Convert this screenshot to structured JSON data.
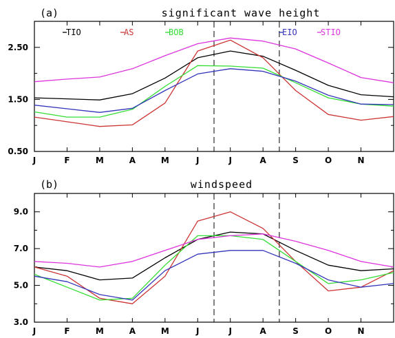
{
  "chart_data": [
    {
      "type": "line",
      "panel_label": "(a)",
      "title": "significant wave height",
      "categories": [
        "J",
        "F",
        "M",
        "A",
        "M",
        "J",
        "J",
        "A",
        "S",
        "O",
        "N",
        ""
      ],
      "ylim": [
        0.5,
        3.0
      ],
      "yticks": [
        "0.50",
        "1.50",
        "2.50"
      ],
      "ytick_values": [
        0.5,
        1.5,
        2.5
      ],
      "yminor_values": [
        1.0,
        2.0,
        3.0
      ],
      "vlines": [
        5.5,
        7.5
      ],
      "series": [
        {
          "name": "TIO",
          "color": "#000000",
          "values": [
            1.53,
            1.51,
            1.49,
            1.61,
            1.91,
            2.3,
            2.43,
            2.33,
            2.06,
            1.77,
            1.59,
            1.55
          ]
        },
        {
          "name": "AS",
          "color": "#cc3333",
          "values": [
            1.16,
            1.07,
            0.98,
            1.01,
            1.43,
            2.43,
            2.64,
            2.3,
            1.67,
            1.21,
            1.1,
            1.17
          ]
        },
        {
          "name": "BOB",
          "color": "#33dd33",
          "values": [
            1.26,
            1.16,
            1.16,
            1.31,
            1.75,
            2.15,
            2.14,
            2.1,
            1.82,
            1.53,
            1.41,
            1.37
          ]
        },
        {
          "name": "EIO",
          "color": "#3333bb",
          "values": [
            1.39,
            1.32,
            1.25,
            1.33,
            1.67,
            1.99,
            2.09,
            2.04,
            1.85,
            1.58,
            1.41,
            1.4
          ]
        },
        {
          "name": "STIO",
          "color": "#dd33dd",
          "values": [
            1.84,
            1.89,
            1.93,
            2.09,
            2.34,
            2.57,
            2.68,
            2.62,
            2.47,
            2.2,
            1.92,
            1.82
          ]
        }
      ]
    },
    {
      "type": "line",
      "panel_label": "(b)",
      "title": "windspeed",
      "categories": [
        "J",
        "F",
        "M",
        "A",
        "M",
        "J",
        "J",
        "A",
        "S",
        "O",
        "N",
        ""
      ],
      "ylim": [
        3.0,
        10.0
      ],
      "yticks": [
        "3.0",
        "5.0",
        "7.0",
        "9.0"
      ],
      "ytick_values": [
        3.0,
        5.0,
        7.0,
        9.0
      ],
      "yminor_values": [
        4.0,
        6.0,
        8.0
      ],
      "vlines": [
        5.5,
        7.5
      ],
      "series": [
        {
          "name": "TIO",
          "color": "#000000",
          "values": [
            6.0,
            5.8,
            5.3,
            5.4,
            6.5,
            7.5,
            7.9,
            7.8,
            6.9,
            6.1,
            5.8,
            5.9
          ]
        },
        {
          "name": "AS",
          "color": "#cc3333",
          "values": [
            6.0,
            5.5,
            4.3,
            4.0,
            5.5,
            8.5,
            9.0,
            8.1,
            6.3,
            4.7,
            4.9,
            5.8
          ]
        },
        {
          "name": "BOB",
          "color": "#33dd33",
          "values": [
            5.6,
            4.9,
            4.2,
            4.3,
            6.1,
            7.7,
            7.7,
            7.5,
            6.3,
            5.1,
            5.3,
            5.7
          ]
        },
        {
          "name": "EIO",
          "color": "#3333bb",
          "values": [
            5.5,
            5.2,
            4.5,
            4.2,
            5.8,
            6.7,
            6.9,
            6.9,
            6.2,
            5.3,
            4.9,
            5.1
          ]
        },
        {
          "name": "STIO",
          "color": "#dd33dd",
          "values": [
            6.3,
            6.2,
            6.0,
            6.3,
            6.9,
            7.5,
            7.7,
            7.8,
            7.4,
            6.9,
            6.3,
            6.0
          ]
        }
      ]
    }
  ]
}
